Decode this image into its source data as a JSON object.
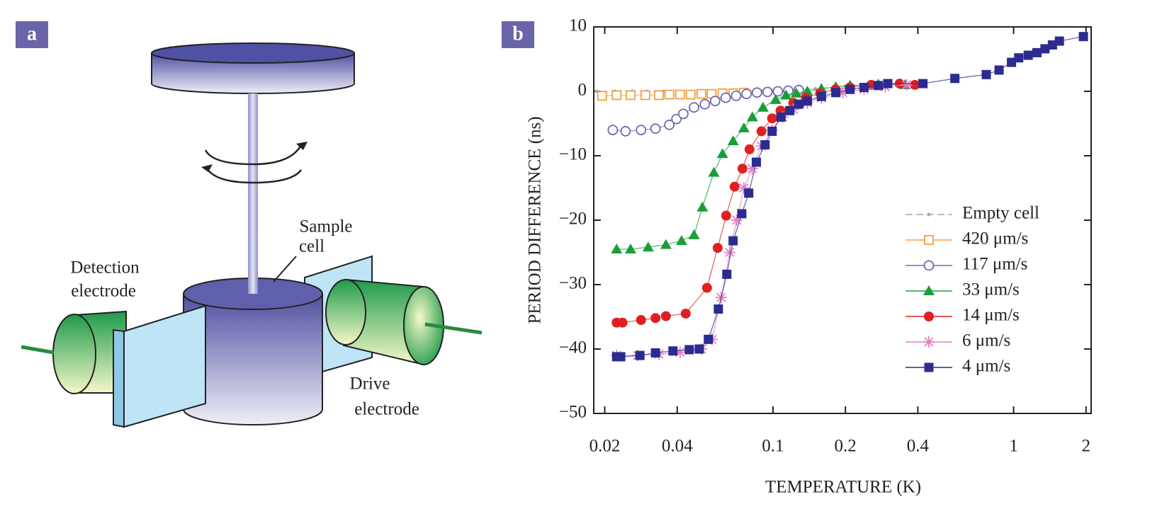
{
  "diagram": {
    "panel_label": "a",
    "sample_cell": [
      "Sample",
      "cell"
    ],
    "detection_electrode": [
      "Detection",
      "electrode"
    ],
    "drive_electrode": [
      "Drive",
      "electrode"
    ]
  },
  "chart_data": {
    "type": "scatter",
    "panel_label": "b",
    "xlabel": "TEMPERATURE (K)",
    "ylabel": "PERIOD DIFFERENCE (ns)",
    "xscale": "log",
    "xlim": [
      0.018,
      2.1
    ],
    "xticks": [
      0.02,
      0.04,
      0.1,
      0.2,
      0.4,
      1,
      2
    ],
    "ylim": [
      -50,
      10
    ],
    "yticks": [
      {
        "value": -50,
        "label": "−50"
      },
      {
        "value": -40,
        "label": "−40"
      },
      {
        "value": -30,
        "label": "−30"
      },
      {
        "value": -20,
        "label": "−20"
      },
      {
        "value": -10,
        "label": "−10"
      },
      0,
      10
    ],
    "legend": "lower right",
    "series": [
      {
        "name": "Empty cell",
        "color": "#a8a8a8",
        "marker": "dot",
        "x": [
          0.0185,
          0.022,
          0.026,
          0.03,
          0.035,
          0.04,
          0.05,
          0.06,
          0.07,
          0.08,
          0.09,
          0.1,
          0.12,
          0.15,
          0.2,
          0.25,
          0.3
        ],
        "values": [
          0,
          0,
          0,
          0,
          0,
          0,
          0,
          0,
          0,
          0,
          0,
          0.1,
          0.2,
          0.4,
          0.8,
          1.0,
          1.2
        ]
      },
      {
        "name": "420 μm/s",
        "color": "#f0a040",
        "marker": "square-open",
        "x": [
          0.0195,
          0.0224,
          0.0256,
          0.0295,
          0.0336,
          0.0371,
          0.0411,
          0.0455,
          0.0504,
          0.0556,
          0.0617,
          0.0685,
          0.0757
        ],
        "values": [
          -0.7,
          -0.6,
          -0.6,
          -0.6,
          -0.6,
          -0.5,
          -0.5,
          -0.5,
          -0.4,
          -0.4,
          -0.3,
          -0.3,
          -0.2
        ]
      },
      {
        "name": "117 μm/s",
        "color": "#6b6bb0",
        "marker": "circle-open",
        "x": [
          0.0216,
          0.0244,
          0.0283,
          0.0325,
          0.0371,
          0.0397,
          0.0424,
          0.047,
          0.0521,
          0.0575,
          0.0636,
          0.0703,
          0.0777,
          0.0858,
          0.0949,
          0.1048,
          0.1158,
          0.128
        ],
        "values": [
          -6,
          -6.2,
          -6,
          -5.8,
          -5.2,
          -4.3,
          -3.5,
          -2.5,
          -2,
          -1.5,
          -1,
          -0.7,
          -0.4,
          -0.2,
          -0.1,
          0,
          0.1,
          0.2
        ]
      },
      {
        "name": "33 μm/s",
        "color": "#1a9e3a",
        "marker": "triangle",
        "x": [
          0.0224,
          0.0256,
          0.0303,
          0.0359,
          0.0417,
          0.047,
          0.0509,
          0.0568,
          0.0617,
          0.0683,
          0.0757,
          0.0821,
          0.0909,
          0.1026,
          0.1133,
          0.125,
          0.139,
          0.159,
          0.1825,
          0.209,
          0.274,
          0.354
        ],
        "values": [
          -24.5,
          -24.5,
          -24.2,
          -23.8,
          -23.2,
          -22.3,
          -18,
          -12.6,
          -9.7,
          -7.7,
          -5.7,
          -4,
          -2.5,
          -1.3,
          -0.6,
          -0.3,
          0,
          0.4,
          0.7,
          0.9,
          1.1,
          1
        ]
      },
      {
        "name": "14 μm/s",
        "color": "#e02020",
        "marker": "circle",
        "x": [
          0.0224,
          0.0237,
          0.0283,
          0.0325,
          0.0359,
          0.0434,
          0.0532,
          0.0589,
          0.0639,
          0.0693,
          0.0747,
          0.0799,
          0.0896,
          0.0992,
          0.1075,
          0.1215,
          0.137,
          0.157,
          0.182,
          0.209,
          0.256,
          0.336,
          0.389
        ],
        "values": [
          -35.9,
          -35.9,
          -35.5,
          -35.2,
          -34.9,
          -34.5,
          -30.5,
          -24.3,
          -19.3,
          -14.8,
          -12,
          -9,
          -6.2,
          -4.2,
          -3,
          -1.8,
          -1,
          -0.3,
          0.3,
          0.6,
          1,
          1.2,
          1
        ]
      },
      {
        "name": "6 μm/s",
        "color": "#e27ec0",
        "marker": "star",
        "x": [
          0.0224,
          0.0274,
          0.0336,
          0.0411,
          0.0504,
          0.0558,
          0.0609,
          0.0661,
          0.0707,
          0.0757,
          0.082,
          0.0896,
          0.0992,
          0.1098,
          0.1215,
          0.139,
          0.159,
          0.195,
          0.239,
          0.293,
          0.359
        ],
        "values": [
          -41,
          -41,
          -40.8,
          -40.5,
          -40,
          -38.5,
          -32,
          -25,
          -20,
          -15,
          -12,
          -8.5,
          -6,
          -4,
          -2.8,
          -1.8,
          -1,
          -0.2,
          0.3,
          0.7,
          1
        ]
      },
      {
        "name": "4 μm/s",
        "color": "#2b2b90",
        "marker": "square",
        "x": [
          0.0224,
          0.0233,
          0.028,
          0.0325,
          0.0384,
          0.0449,
          0.0494,
          0.0539,
          0.0593,
          0.0643,
          0.0683,
          0.0742,
          0.0793,
          0.0853,
          0.0927,
          0.0992,
          0.108,
          0.1175,
          0.128,
          0.139,
          0.159,
          0.1825,
          0.209,
          0.239,
          0.274,
          0.3,
          0.42,
          0.57,
          0.77,
          0.87,
          0.98,
          1.05,
          1.15,
          1.25,
          1.35,
          1.45,
          1.55,
          1.95
        ],
        "values": [
          -41.2,
          -41.2,
          -41,
          -40.6,
          -40.3,
          -40.1,
          -40,
          -38.5,
          -33.8,
          -28.4,
          -23.2,
          -19,
          -15.8,
          -11,
          -8.3,
          -6.2,
          -4,
          -3,
          -2,
          -1.5,
          -0.8,
          -0.2,
          0.3,
          0.6,
          0.9,
          1.2,
          1.2,
          2,
          2.6,
          3.3,
          4.5,
          5.2,
          5.6,
          6,
          6.6,
          7.2,
          7.8,
          8.5
        ]
      }
    ]
  }
}
